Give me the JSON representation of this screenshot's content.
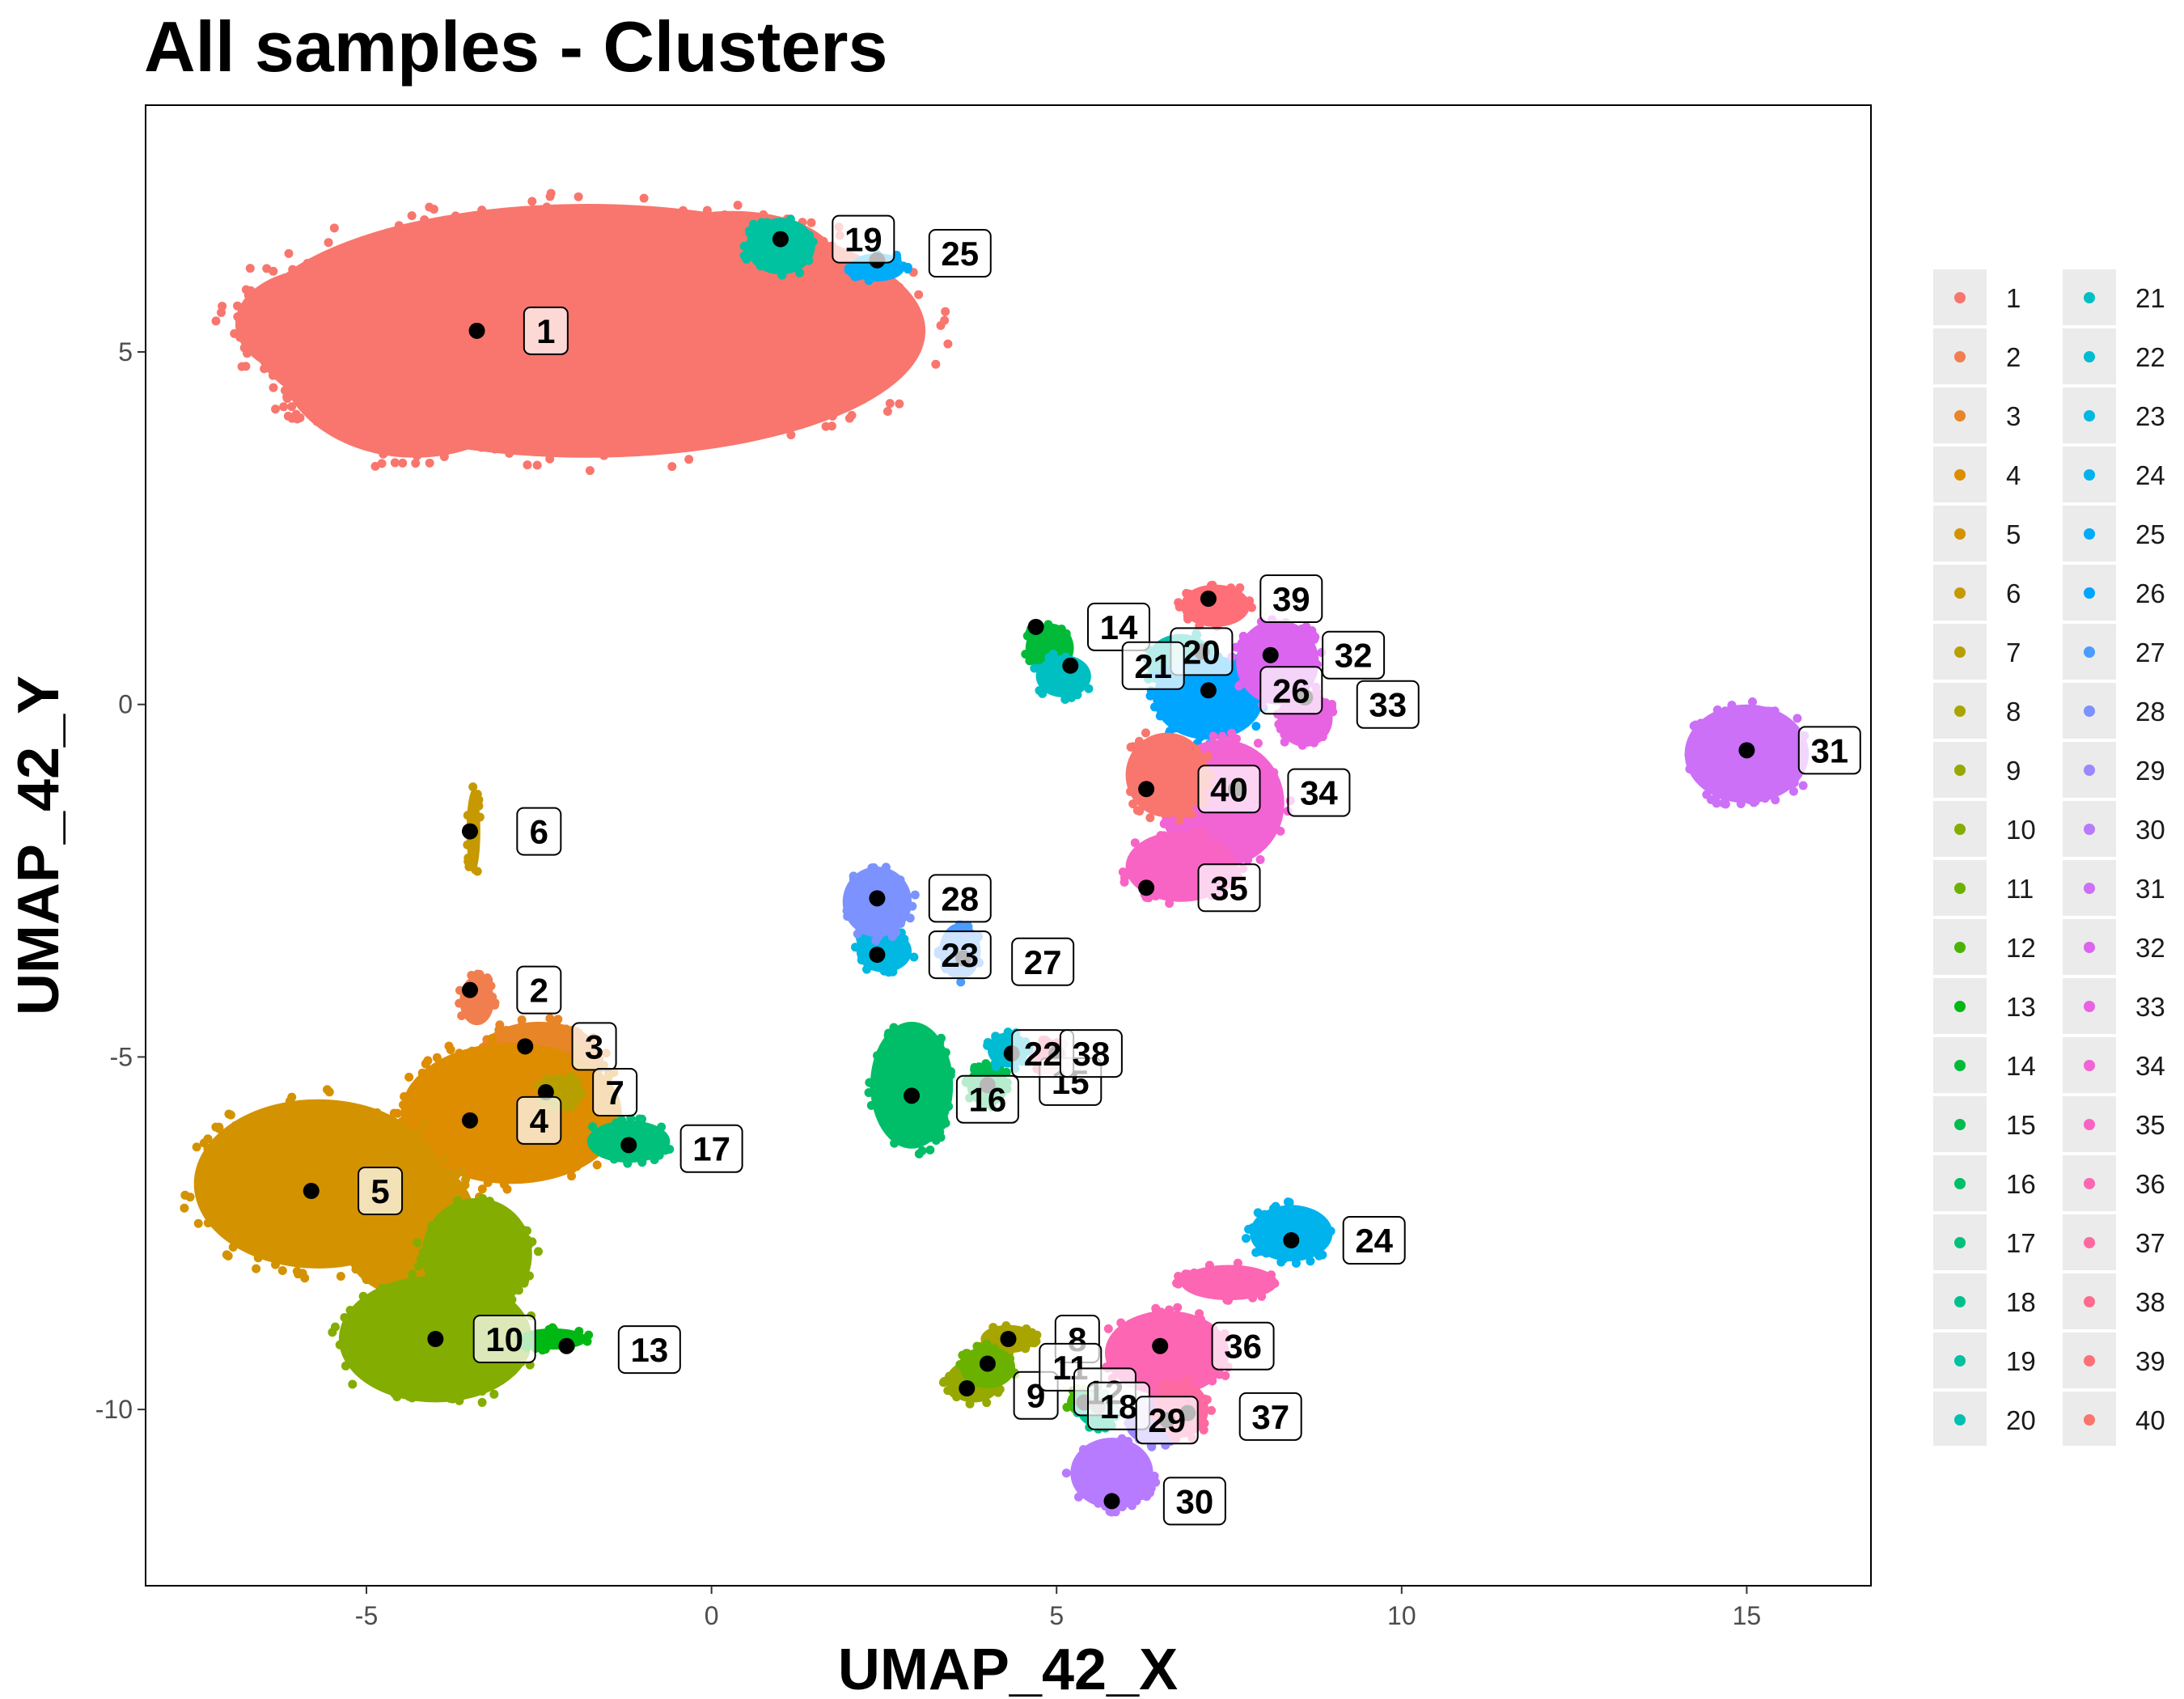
{
  "chart_data": {
    "type": "scatter",
    "title": "All samples - Clusters",
    "xlabel": "UMAP_42_X",
    "ylabel": "UMAP_42_Y",
    "xlim": [
      -8.2,
      16.8
    ],
    "ylim": [
      -12.5,
      8.5
    ],
    "xticks": [
      -5,
      0,
      5,
      10,
      15
    ],
    "yticks": [
      5,
      0,
      -5,
      -10
    ],
    "grid": false,
    "legend": "right",
    "legend_columns": 2,
    "colors": [
      "#F8766D",
      "#F17E4F",
      "#E88526",
      "#DE8C00",
      "#D39200",
      "#C69900",
      "#B89F00",
      "#A8A400",
      "#97A900",
      "#83AD00",
      "#6BB100",
      "#4BB400",
      "#00B813",
      "#00BA38",
      "#00BC51",
      "#00BE67",
      "#00C07B",
      "#00C18E",
      "#00C1A0",
      "#00C0B2",
      "#00BFC3",
      "#00BCD2",
      "#00B8E1",
      "#00B3ED",
      "#00ACF8",
      "#00A5FF",
      "#4B9CFF",
      "#7B92FF",
      "#9C87FF",
      "#B77BFF",
      "#CB70F7",
      "#DB65EE",
      "#E763E2",
      "#F263D4",
      "#F864C4",
      "#FC66B3",
      "#FF69A1",
      "#FF6C8D",
      "#FF6F77",
      "#F8766D"
    ],
    "series": [
      {
        "name": "1",
        "blobs": [
          {
            "cx": -1.8,
            "cy": 5.3,
            "rx": 4.9,
            "ry": 1.8
          },
          {
            "cx": -5.6,
            "cy": 5.4,
            "rx": 1.3,
            "ry": 0.8
          },
          {
            "cx": -4.3,
            "cy": 5.0,
            "rx": 2.0,
            "ry": 1.5
          },
          {
            "cx": 0.3,
            "cy": 6.3,
            "rx": 1.5,
            "ry": 0.7
          }
        ],
        "centroid": [
          -3.4,
          5.3
        ],
        "label": [
          -2.4,
          5.3
        ]
      },
      {
        "name": "2",
        "blobs": [
          {
            "cx": -3.4,
            "cy": -4.2,
            "rx": 0.25,
            "ry": 0.35
          }
        ],
        "centroid": [
          -3.5,
          -4.05
        ],
        "label": [
          -2.5,
          -4.05
        ]
      },
      {
        "name": "3",
        "blobs": [
          {
            "cx": -2.5,
            "cy": -5.0,
            "rx": 0.9,
            "ry": 0.5
          }
        ],
        "centroid": [
          -2.7,
          -4.85
        ],
        "label": [
          -1.7,
          -4.85
        ]
      },
      {
        "name": "4",
        "blobs": [
          {
            "cx": -2.9,
            "cy": -5.8,
            "rx": 1.6,
            "ry": 1.0
          }
        ],
        "centroid": [
          -3.5,
          -5.9
        ],
        "label": [
          -2.5,
          -5.9
        ]
      },
      {
        "name": "5",
        "blobs": [
          {
            "cx": -5.7,
            "cy": -6.8,
            "rx": 1.8,
            "ry": 1.2
          },
          {
            "cx": -4.4,
            "cy": -7.4,
            "rx": 1.0,
            "ry": 1.0
          }
        ],
        "centroid": [
          -5.8,
          -6.9
        ],
        "label": [
          -4.8,
          -6.9
        ]
      },
      {
        "name": "6",
        "blobs": [
          {
            "cx": -3.45,
            "cy": -1.8,
            "rx": 0.1,
            "ry": 0.6
          }
        ],
        "centroid": [
          -3.5,
          -1.8
        ],
        "label": [
          -2.5,
          -1.8
        ]
      },
      {
        "name": "7",
        "blobs": [
          {
            "cx": -2.2,
            "cy": -5.5,
            "rx": 0.3,
            "ry": 0.25
          }
        ],
        "centroid": [
          -2.4,
          -5.5
        ],
        "label": [
          -1.4,
          -5.5
        ]
      },
      {
        "name": "8",
        "blobs": [
          {
            "cx": 4.3,
            "cy": -9.0,
            "rx": 0.4,
            "ry": 0.2
          }
        ],
        "centroid": [
          4.3,
          -9.0
        ],
        "label": [
          5.3,
          -9.0
        ]
      },
      {
        "name": "9",
        "blobs": [
          {
            "cx": 3.8,
            "cy": -9.6,
            "rx": 0.4,
            "ry": 0.3
          }
        ],
        "centroid": [
          3.7,
          -9.7
        ],
        "label": [
          4.7,
          -9.8
        ]
      },
      {
        "name": "10",
        "blobs": [
          {
            "cx": -4.0,
            "cy": -9.0,
            "rx": 1.4,
            "ry": 0.9
          },
          {
            "cx": -3.4,
            "cy": -7.8,
            "rx": 0.8,
            "ry": 0.8
          }
        ],
        "centroid": [
          -4.0,
          -9.0
        ],
        "label": [
          -3.0,
          -9.0
        ]
      },
      {
        "name": "11",
        "blobs": [
          {
            "cx": 4.0,
            "cy": -9.4,
            "rx": 0.4,
            "ry": 0.3
          }
        ],
        "centroid": [
          4.0,
          -9.35
        ],
        "label": [
          5.2,
          -9.4
        ]
      },
      {
        "name": "12",
        "blobs": [
          {
            "cx": 5.4,
            "cy": -9.9,
            "rx": 0.25,
            "ry": 0.2
          }
        ],
        "centroid": [
          5.4,
          -9.9
        ],
        "label": [
          5.7,
          -9.75
        ]
      },
      {
        "name": "13",
        "blobs": [
          {
            "cx": -2.3,
            "cy": -9.0,
            "rx": 0.5,
            "ry": 0.15
          }
        ],
        "centroid": [
          -2.1,
          -9.1
        ],
        "label": [
          -0.9,
          -9.15
        ]
      },
      {
        "name": "14",
        "blobs": [
          {
            "cx": 4.9,
            "cy": 0.8,
            "rx": 0.35,
            "ry": 0.35
          }
        ],
        "centroid": [
          4.7,
          1.1
        ],
        "label": [
          5.9,
          1.1
        ]
      },
      {
        "name": "15",
        "blobs": [
          {
            "cx": 4.0,
            "cy": -5.4,
            "rx": 0.3,
            "ry": 0.3
          }
        ],
        "centroid": [
          4.0,
          -5.4
        ],
        "label": [
          5.2,
          -5.35
        ]
      },
      {
        "name": "16",
        "blobs": [
          {
            "cx": 2.9,
            "cy": -5.4,
            "rx": 0.6,
            "ry": 0.9
          }
        ],
        "centroid": [
          2.9,
          -5.55
        ],
        "label": [
          4.0,
          -5.6
        ]
      },
      {
        "name": "17",
        "blobs": [
          {
            "cx": -1.2,
            "cy": -6.2,
            "rx": 0.6,
            "ry": 0.3
          }
        ],
        "centroid": [
          -1.2,
          -6.25
        ],
        "label": [
          0.0,
          -6.3
        ]
      },
      {
        "name": "18",
        "blobs": [
          {
            "cx": 5.6,
            "cy": -10.0,
            "rx": 0.3,
            "ry": 0.25
          }
        ],
        "centroid": [
          5.6,
          -9.95
        ],
        "label": [
          5.9,
          -9.95
        ]
      },
      {
        "name": "19",
        "blobs": [
          {
            "cx": 1.0,
            "cy": 6.5,
            "rx": 0.5,
            "ry": 0.4
          }
        ],
        "centroid": [
          1.0,
          6.6
        ],
        "label": [
          2.2,
          6.6
        ]
      },
      {
        "name": "20",
        "blobs": [
          {
            "cx": 6.8,
            "cy": 0.6,
            "rx": 0.5,
            "ry": 0.4
          }
        ],
        "centroid": [
          7.1,
          0.75
        ],
        "label": [
          7.1,
          0.75
        ]
      },
      {
        "name": "21",
        "blobs": [
          {
            "cx": 5.1,
            "cy": 0.4,
            "rx": 0.4,
            "ry": 0.3
          }
        ],
        "centroid": [
          5.2,
          0.55
        ],
        "label": [
          6.4,
          0.55
        ]
      },
      {
        "name": "22",
        "blobs": [
          {
            "cx": 4.3,
            "cy": -4.9,
            "rx": 0.3,
            "ry": 0.25
          }
        ],
        "centroid": [
          4.35,
          -4.95
        ],
        "label": [
          4.8,
          -4.95
        ]
      },
      {
        "name": "23",
        "blobs": [
          {
            "cx": 2.5,
            "cy": -3.5,
            "rx": 0.4,
            "ry": 0.3
          }
        ],
        "centroid": [
          2.4,
          -3.55
        ],
        "label": [
          3.6,
          -3.55
        ]
      },
      {
        "name": "24",
        "blobs": [
          {
            "cx": 8.4,
            "cy": -7.5,
            "rx": 0.6,
            "ry": 0.4
          }
        ],
        "centroid": [
          8.4,
          -7.6
        ],
        "label": [
          9.6,
          -7.6
        ]
      },
      {
        "name": "25",
        "blobs": [
          {
            "cx": 2.4,
            "cy": 6.2,
            "rx": 0.4,
            "ry": 0.2
          }
        ],
        "centroid": [
          2.4,
          6.3
        ],
        "label": [
          3.6,
          6.4
        ]
      },
      {
        "name": "26",
        "blobs": [
          {
            "cx": 7.2,
            "cy": 0.1,
            "rx": 0.8,
            "ry": 0.6
          }
        ],
        "centroid": [
          7.2,
          0.2
        ],
        "label": [
          8.4,
          0.2
        ]
      },
      {
        "name": "27",
        "blobs": [
          {
            "cx": 3.6,
            "cy": -3.5,
            "rx": 0.3,
            "ry": 0.4
          }
        ],
        "centroid": [
          3.65,
          -3.6
        ],
        "label": [
          4.8,
          -3.65
        ]
      },
      {
        "name": "28",
        "blobs": [
          {
            "cx": 2.4,
            "cy": -2.8,
            "rx": 0.5,
            "ry": 0.5
          }
        ],
        "centroid": [
          2.4,
          -2.75
        ],
        "label": [
          3.6,
          -2.75
        ]
      },
      {
        "name": "29",
        "blobs": [
          {
            "cx": 6.4,
            "cy": -10.2,
            "rx": 0.4,
            "ry": 0.3
          }
        ],
        "centroid": [
          6.6,
          -10.15
        ],
        "label": [
          6.6,
          -10.15
        ]
      },
      {
        "name": "30",
        "blobs": [
          {
            "cx": 5.8,
            "cy": -10.9,
            "rx": 0.6,
            "ry": 0.5
          }
        ],
        "centroid": [
          5.8,
          -11.3
        ],
        "label": [
          7.0,
          -11.3
        ]
      },
      {
        "name": "31",
        "blobs": [
          {
            "cx": 15.0,
            "cy": -0.7,
            "rx": 0.9,
            "ry": 0.7
          }
        ],
        "centroid": [
          15.0,
          -0.65
        ],
        "label": [
          16.2,
          -0.65
        ]
      },
      {
        "name": "32",
        "blobs": [
          {
            "cx": 8.2,
            "cy": 0.6,
            "rx": 0.6,
            "ry": 0.6
          }
        ],
        "centroid": [
          8.1,
          0.7
        ],
        "label": [
          9.3,
          0.7
        ]
      },
      {
        "name": "33",
        "blobs": [
          {
            "cx": 8.6,
            "cy": -0.2,
            "rx": 0.4,
            "ry": 0.4
          }
        ],
        "centroid": [
          8.6,
          0.1
        ],
        "label": [
          9.8,
          0.0
        ]
      },
      {
        "name": "34",
        "blobs": [
          {
            "cx": 7.4,
            "cy": -1.4,
            "rx": 0.9,
            "ry": 0.9
          }
        ],
        "centroid": [
          7.6,
          -1.2
        ],
        "label": [
          8.8,
          -1.25
        ]
      },
      {
        "name": "35",
        "blobs": [
          {
            "cx": 6.8,
            "cy": -2.3,
            "rx": 0.8,
            "ry": 0.5
          }
        ],
        "centroid": [
          6.3,
          -2.6
        ],
        "label": [
          7.5,
          -2.6
        ]
      },
      {
        "name": "36",
        "blobs": [
          {
            "cx": 6.6,
            "cy": -9.2,
            "rx": 0.9,
            "ry": 0.6
          },
          {
            "cx": 7.5,
            "cy": -8.2,
            "rx": 0.7,
            "ry": 0.25
          }
        ],
        "centroid": [
          6.5,
          -9.1
        ],
        "label": [
          7.7,
          -9.1
        ]
      },
      {
        "name": "37",
        "blobs": [
          {
            "cx": 6.8,
            "cy": -10.0,
            "rx": 0.4,
            "ry": 0.4
          }
        ],
        "centroid": [
          6.9,
          -10.05
        ],
        "label": [
          8.1,
          -10.1
        ]
      },
      {
        "name": "38",
        "blobs": [
          {
            "cx": 4.9,
            "cy": -5.0,
            "rx": 0.25,
            "ry": 0.25
          }
        ],
        "centroid": [
          5.0,
          -4.95
        ],
        "label": [
          5.5,
          -4.95
        ]
      },
      {
        "name": "39",
        "blobs": [
          {
            "cx": 7.3,
            "cy": 1.4,
            "rx": 0.5,
            "ry": 0.3
          }
        ],
        "centroid": [
          7.2,
          1.5
        ],
        "label": [
          8.4,
          1.5
        ]
      },
      {
        "name": "40",
        "blobs": [
          {
            "cx": 6.6,
            "cy": -1.0,
            "rx": 0.6,
            "ry": 0.6
          }
        ],
        "centroid": [
          6.3,
          -1.2
        ],
        "label": [
          7.5,
          -1.2
        ]
      }
    ]
  }
}
